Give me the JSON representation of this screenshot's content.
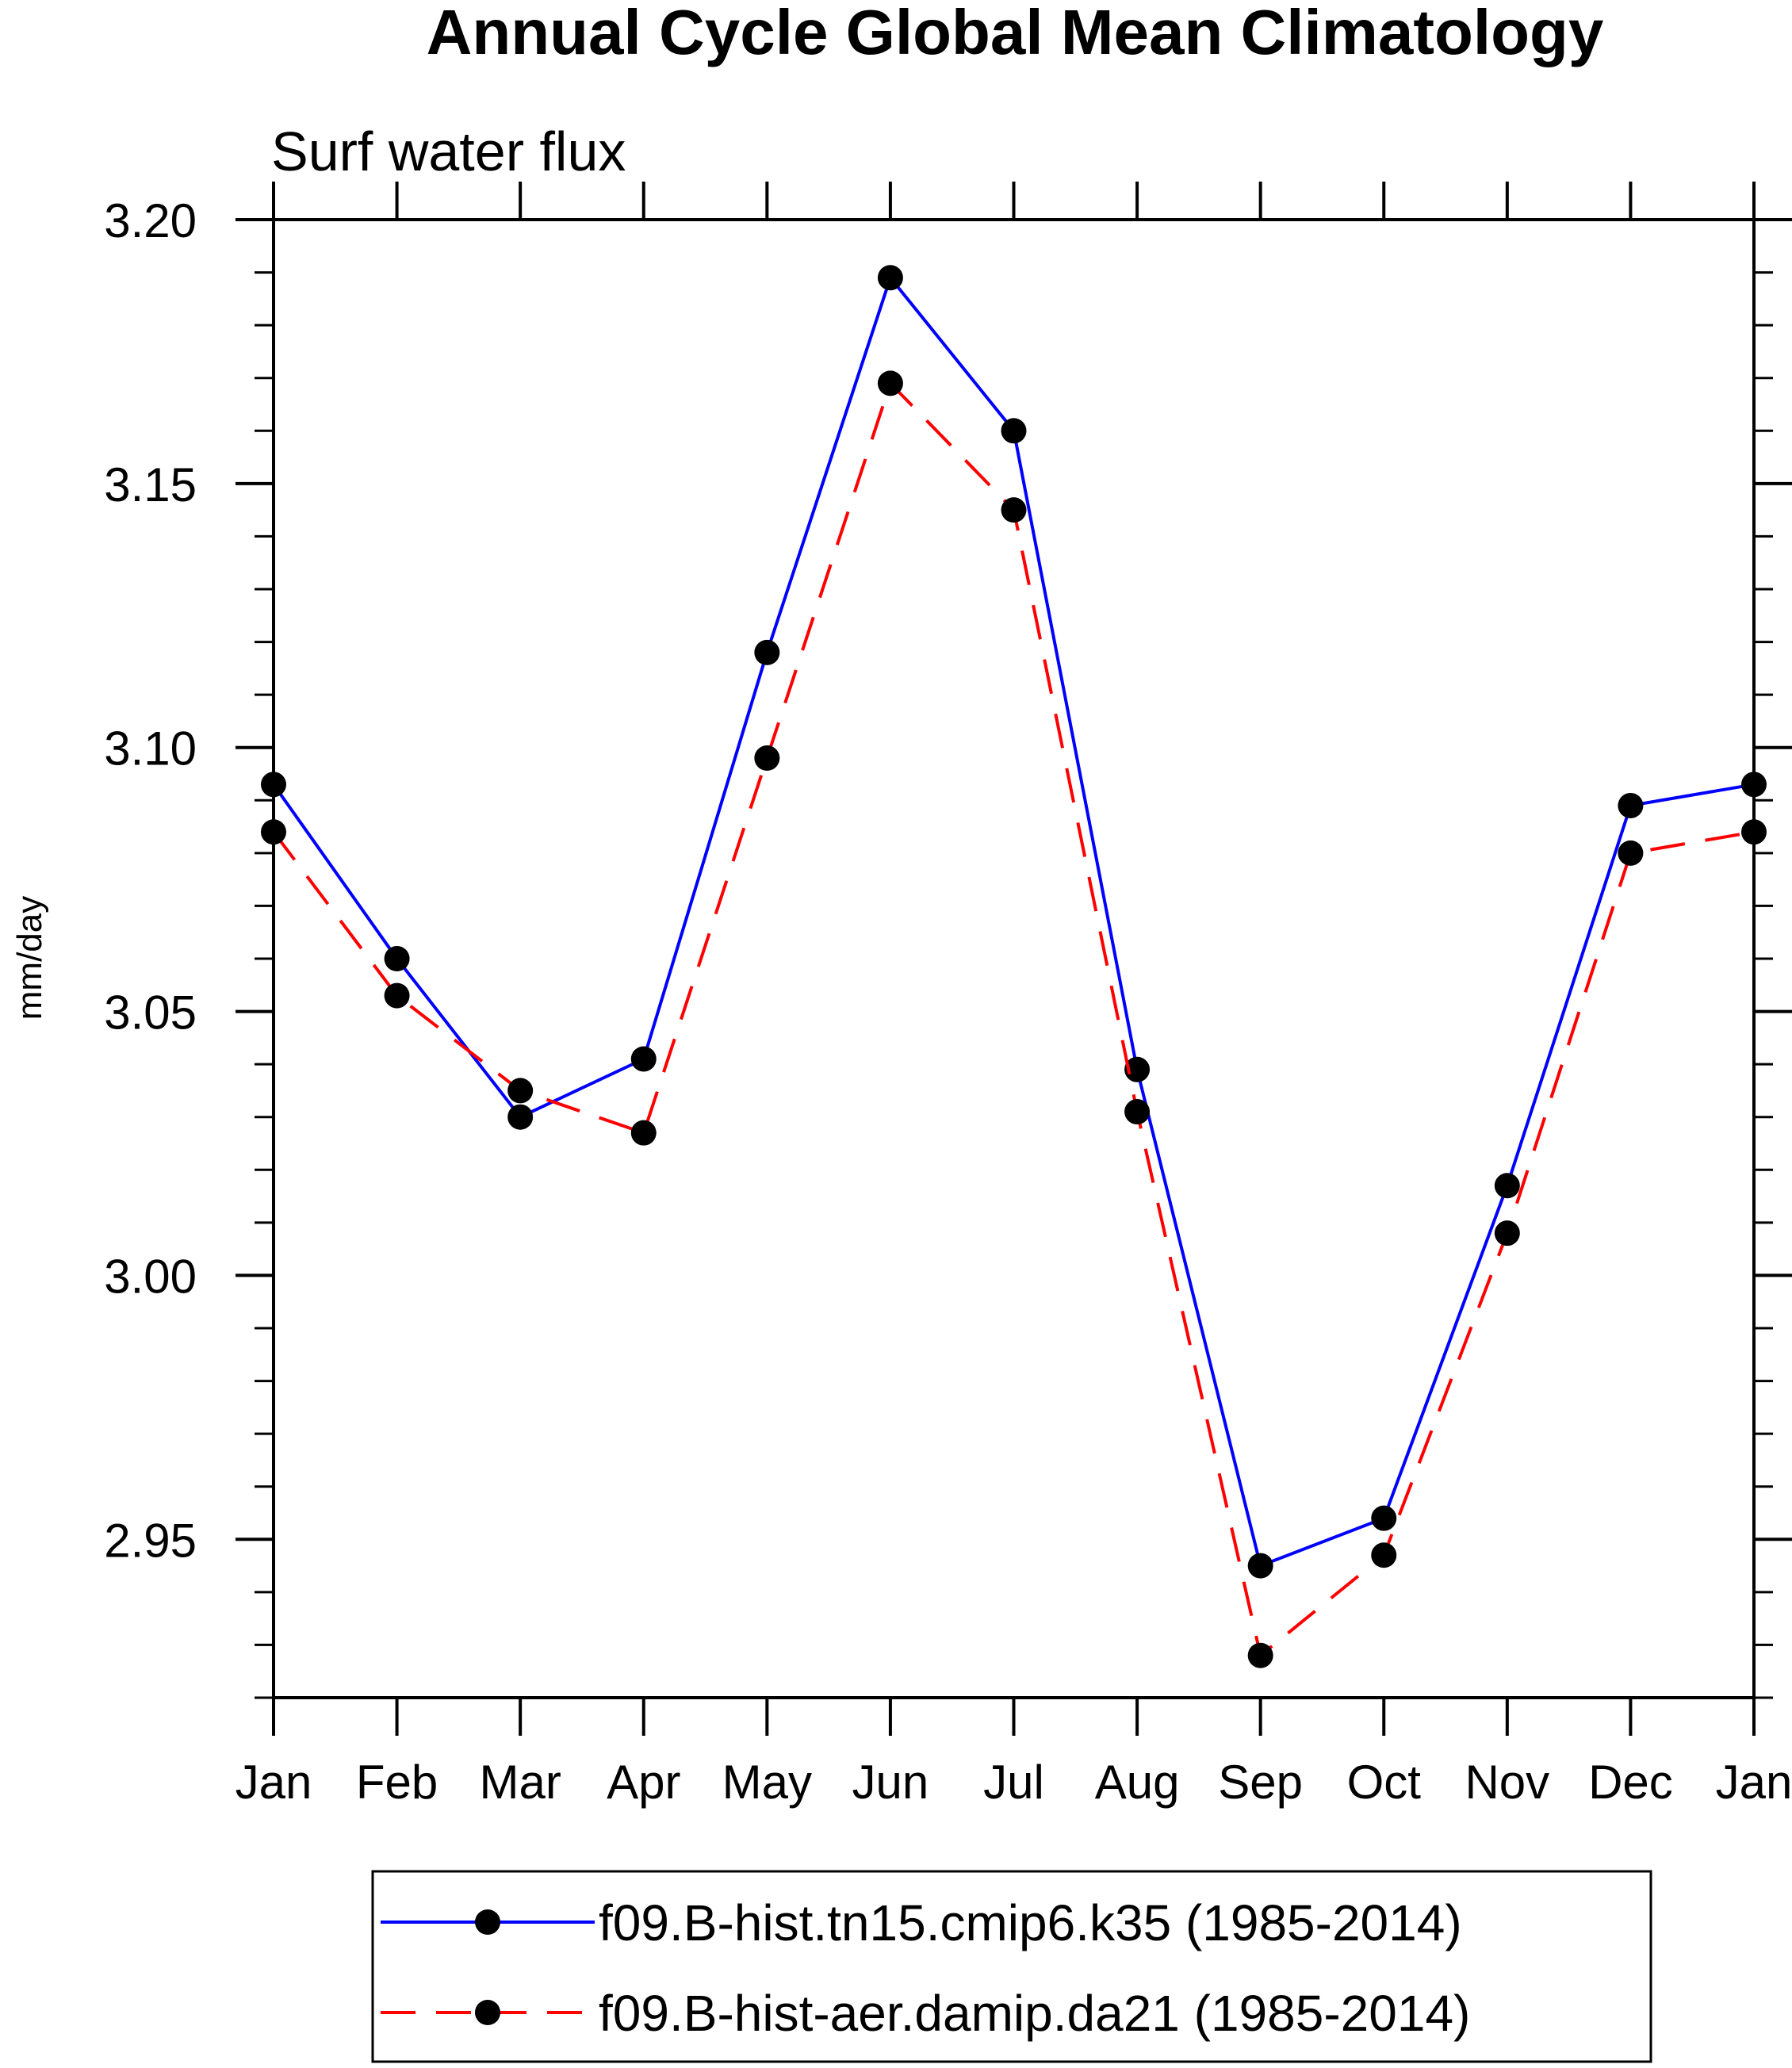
{
  "chart_data": {
    "type": "line",
    "title": "Annual Cycle Global Mean Climatology",
    "subtitle": "Surf water flux",
    "xlabel": "",
    "ylabel": "mm/day",
    "categories": [
      "Jan",
      "Feb",
      "Mar",
      "Apr",
      "May",
      "Jun",
      "Jul",
      "Aug",
      "Sep",
      "Oct",
      "Nov",
      "Dec",
      "Jan"
    ],
    "ylim": [
      2.92,
      3.2
    ],
    "yticks": [
      "3.20",
      "3.15",
      "3.10",
      "3.05",
      "3.00",
      "2.95"
    ],
    "ytick_values": [
      3.2,
      3.15,
      3.1,
      3.05,
      3.0,
      2.95
    ],
    "grid": false,
    "legend_position": "bottom",
    "series": [
      {
        "name": "f09.B-hist.tn15.cmip6.k35 (1985-2014)",
        "color": "#0000ff",
        "dash": "solid",
        "values": [
          3.093,
          3.06,
          3.03,
          3.041,
          3.118,
          3.189,
          3.16,
          3.039,
          2.945,
          2.954,
          3.017,
          3.089,
          3.093
        ]
      },
      {
        "name": "f09.B-hist-aer.damip.da21 (1985-2014)",
        "color": "#ff0000",
        "dash": "dashed",
        "values": [
          3.084,
          3.053,
          3.035,
          3.027,
          3.098,
          3.169,
          3.145,
          3.031,
          2.928,
          2.947,
          3.008,
          3.08,
          3.084
        ]
      }
    ]
  }
}
